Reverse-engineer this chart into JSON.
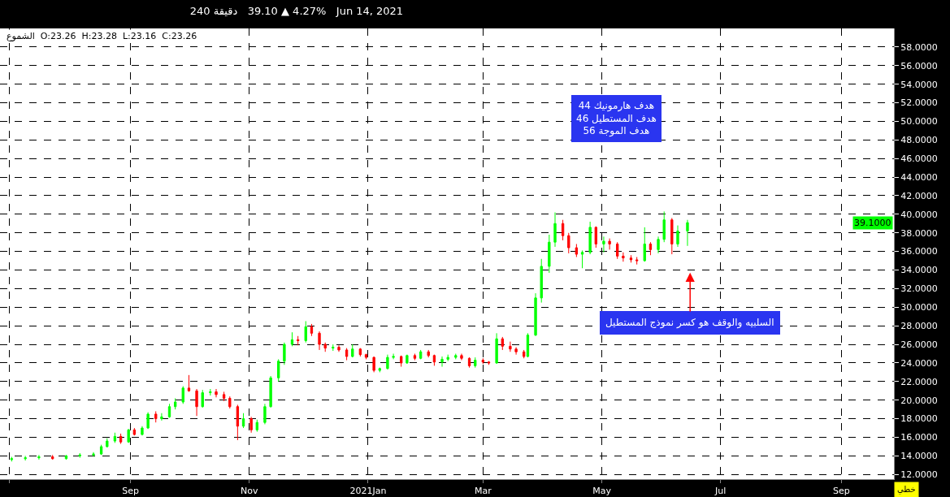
{
  "chart_data": {
    "type": "candlestick",
    "title": "240 دقيقة   39.10 ▲ 4.27%   Jun 14, 2021",
    "subtitle": "الشموع  O:23.26  H:23.28  L:23.16  C:23.26",
    "x": [
      "2020-07-02",
      "2020-07-09",
      "2020-07-16",
      "2020-07-23",
      "2020-07-30",
      "2020-08-06",
      "2020-08-13",
      "2020-08-17",
      "2020-08-20",
      "2020-08-24",
      "2020-08-27",
      "2020-08-31",
      "2020-09-03",
      "2020-09-07",
      "2020-09-10",
      "2020-09-14",
      "2020-09-17",
      "2020-09-21",
      "2020-09-24",
      "2020-09-28",
      "2020-10-01",
      "2020-10-05",
      "2020-10-08",
      "2020-10-12",
      "2020-10-15",
      "2020-10-19",
      "2020-10-22",
      "2020-10-26",
      "2020-10-29",
      "2020-11-02",
      "2020-11-05",
      "2020-11-09",
      "2020-11-12",
      "2020-11-16",
      "2020-11-19",
      "2020-11-23",
      "2020-11-26",
      "2020-11-30",
      "2020-12-03",
      "2020-12-07",
      "2020-12-10",
      "2020-12-14",
      "2020-12-17",
      "2020-12-21",
      "2020-12-24",
      "2020-12-28",
      "2020-12-31",
      "2021-01-04",
      "2021-01-07",
      "2021-01-11",
      "2021-01-14",
      "2021-01-18",
      "2021-01-21",
      "2021-01-25",
      "2021-01-28",
      "2021-02-01",
      "2021-02-04",
      "2021-02-08",
      "2021-02-11",
      "2021-02-15",
      "2021-02-18",
      "2021-02-22",
      "2021-02-25",
      "2021-03-01",
      "2021-03-04",
      "2021-03-08",
      "2021-03-11",
      "2021-03-15",
      "2021-03-18",
      "2021-03-22",
      "2021-03-24",
      "2021-03-28",
      "2021-03-31",
      "2021-04-04",
      "2021-04-07",
      "2021-04-11",
      "2021-04-14",
      "2021-04-18",
      "2021-04-21",
      "2021-04-25",
      "2021-04-28",
      "2021-05-02",
      "2021-05-05",
      "2021-05-09",
      "2021-05-12",
      "2021-05-16",
      "2021-05-19",
      "2021-05-23",
      "2021-05-26",
      "2021-05-30",
      "2021-06-02",
      "2021-06-06",
      "2021-06-09",
      "2021-06-14"
    ],
    "ohlc": [
      [
        13.6,
        13.9,
        13.4,
        13.7
      ],
      [
        13.7,
        14.0,
        13.5,
        13.8
      ],
      [
        13.8,
        14.1,
        13.6,
        13.9
      ],
      [
        13.9,
        14.1,
        13.6,
        13.7
      ],
      [
        13.7,
        14.1,
        13.6,
        14.0
      ],
      [
        14.0,
        14.3,
        13.8,
        14.1
      ],
      [
        14.1,
        14.4,
        13.9,
        14.2
      ],
      [
        14.2,
        15.2,
        14.1,
        15.0
      ],
      [
        15.0,
        15.9,
        14.9,
        15.6
      ],
      [
        15.6,
        16.5,
        15.4,
        16.1
      ],
      [
        16.1,
        16.4,
        15.3,
        15.5
      ],
      [
        15.5,
        16.9,
        15.4,
        16.8
      ],
      [
        16.8,
        17.0,
        16.2,
        16.3
      ],
      [
        16.3,
        17.2,
        16.2,
        17.0
      ],
      [
        17.0,
        18.7,
        16.9,
        18.5
      ],
      [
        18.5,
        18.8,
        17.6,
        18.0
      ],
      [
        18.0,
        18.6,
        17.8,
        18.2
      ],
      [
        18.2,
        19.6,
        18.1,
        19.3
      ],
      [
        19.3,
        20.2,
        19.0,
        19.8
      ],
      [
        19.8,
        21.5,
        19.6,
        21.3
      ],
      [
        21.3,
        22.7,
        20.9,
        21.0
      ],
      [
        21.0,
        21.2,
        18.3,
        19.3
      ],
      [
        19.3,
        21.1,
        19.2,
        20.8
      ],
      [
        20.8,
        21.2,
        20.5,
        20.9
      ],
      [
        20.9,
        21.2,
        20.3,
        20.6
      ],
      [
        20.6,
        20.9,
        19.9,
        20.2
      ],
      [
        20.2,
        20.4,
        19.1,
        19.3
      ],
      [
        19.3,
        19.5,
        15.7,
        17.2
      ],
      [
        17.2,
        18.6,
        17.0,
        18.0
      ],
      [
        18.0,
        18.2,
        16.5,
        16.8
      ],
      [
        16.8,
        17.9,
        16.6,
        17.6
      ],
      [
        17.6,
        19.6,
        17.4,
        19.3
      ],
      [
        19.3,
        22.6,
        19.2,
        22.4
      ],
      [
        22.4,
        24.4,
        22.0,
        24.2
      ],
      [
        24.2,
        26.2,
        23.8,
        26.0
      ],
      [
        26.0,
        27.3,
        25.8,
        26.5
      ],
      [
        26.5,
        26.9,
        25.9,
        26.4
      ],
      [
        26.4,
        28.5,
        26.2,
        27.9
      ],
      [
        27.9,
        28.2,
        26.9,
        27.2
      ],
      [
        27.2,
        27.4,
        25.4,
        26.0
      ],
      [
        26.0,
        26.2,
        25.2,
        25.6
      ],
      [
        25.6,
        26.0,
        25.3,
        25.7
      ],
      [
        25.7,
        25.9,
        25.2,
        25.4
      ],
      [
        25.4,
        25.6,
        24.3,
        24.7
      ],
      [
        24.7,
        26.0,
        24.6,
        25.5
      ],
      [
        25.5,
        25.6,
        24.7,
        24.9
      ],
      [
        24.9,
        25.0,
        24.4,
        24.6
      ],
      [
        24.6,
        24.7,
        23.0,
        23.2
      ],
      [
        23.2,
        23.5,
        23.0,
        23.4
      ],
      [
        23.4,
        24.9,
        23.3,
        24.6
      ],
      [
        24.6,
        25.0,
        24.4,
        24.7
      ],
      [
        24.7,
        24.8,
        23.6,
        24.0
      ],
      [
        24.0,
        24.9,
        23.9,
        24.8
      ],
      [
        24.8,
        25.0,
        24.3,
        24.5
      ],
      [
        24.5,
        25.4,
        24.4,
        25.2
      ],
      [
        25.2,
        25.4,
        24.6,
        24.8
      ],
      [
        24.8,
        24.9,
        23.7,
        24.1
      ],
      [
        24.1,
        24.7,
        23.6,
        24.4
      ],
      [
        24.4,
        24.9,
        24.2,
        24.6
      ],
      [
        24.6,
        25.0,
        24.4,
        24.8
      ],
      [
        24.8,
        25.0,
        24.3,
        24.5
      ],
      [
        24.5,
        24.6,
        23.5,
        23.7
      ],
      [
        23.7,
        24.6,
        23.5,
        24.3
      ],
      [
        24.3,
        24.5,
        23.9,
        24.1
      ],
      [
        24.1,
        24.2,
        23.8,
        24.0
      ],
      [
        24.0,
        27.2,
        23.9,
        26.6
      ],
      [
        26.6,
        26.8,
        25.4,
        25.8
      ],
      [
        25.8,
        26.3,
        25.2,
        25.5
      ],
      [
        25.5,
        25.7,
        24.9,
        25.2
      ],
      [
        25.2,
        25.4,
        24.5,
        24.7
      ],
      [
        24.7,
        27.2,
        24.6,
        27.0
      ],
      [
        27.0,
        31.5,
        26.9,
        31.0
      ],
      [
        31.0,
        35.2,
        30.5,
        34.4
      ],
      [
        34.4,
        37.8,
        33.7,
        37.0
      ],
      [
        37.0,
        40.2,
        36.5,
        39.0
      ],
      [
        39.0,
        39.4,
        37.2,
        37.7
      ],
      [
        37.7,
        38.0,
        35.8,
        36.4
      ],
      [
        36.4,
        36.8,
        35.4,
        35.7
      ],
      [
        35.7,
        36.1,
        34.2,
        35.9
      ],
      [
        35.9,
        39.2,
        35.7,
        38.6
      ],
      [
        38.6,
        38.7,
        36.4,
        36.8
      ],
      [
        36.8,
        37.6,
        35.9,
        37.1
      ],
      [
        37.1,
        37.4,
        36.2,
        36.8
      ],
      [
        36.8,
        37.0,
        35.2,
        35.5
      ],
      [
        35.5,
        35.9,
        34.9,
        35.3
      ],
      [
        35.3,
        35.6,
        34.8,
        35.1
      ],
      [
        35.1,
        35.4,
        34.6,
        35.0
      ],
      [
        35.0,
        38.6,
        34.9,
        36.8
      ],
      [
        36.8,
        37.0,
        35.6,
        36.2
      ],
      [
        36.2,
        37.6,
        35.8,
        37.3
      ],
      [
        37.3,
        40.3,
        37.0,
        39.4
      ],
      [
        39.4,
        39.6,
        35.7,
        36.8
      ],
      [
        36.8,
        38.8,
        36.5,
        38.2
      ],
      [
        38.2,
        39.4,
        36.6,
        39.1
      ]
    ],
    "xlim": [
      "2020-06-26",
      "2021-09-28"
    ],
    "xticks": [
      {
        "value": "2020-07-01",
        "label": null
      },
      {
        "value": "2020-09-01",
        "label": "Sep"
      },
      {
        "value": "2020-11-01",
        "label": "Nov"
      },
      {
        "value": "2021-01-01",
        "label": "2021Jan"
      },
      {
        "value": "2021-03-01",
        "label": "Mar"
      },
      {
        "value": "2021-05-01",
        "label": "May"
      },
      {
        "value": "2021-07-01",
        "label": "Jul"
      },
      {
        "value": "2021-09-01",
        "label": "Sep"
      }
    ],
    "ylim": [
      11.5,
      60
    ],
    "yticks": [
      {
        "value": 12,
        "label": "12.0000"
      },
      {
        "value": 14,
        "label": "14.0000"
      },
      {
        "value": 16,
        "label": "16.0000"
      },
      {
        "value": 18,
        "label": "18.0000"
      },
      {
        "value": 20,
        "label": "20.0000"
      },
      {
        "value": 22,
        "label": "22.0000"
      },
      {
        "value": 24,
        "label": "24.0000"
      },
      {
        "value": 26,
        "label": "26.0000"
      },
      {
        "value": 28,
        "label": "28.0000"
      },
      {
        "value": 30,
        "label": "30.0000"
      },
      {
        "value": 32,
        "label": "32.0000"
      },
      {
        "value": 34,
        "label": "34.0000"
      },
      {
        "value": 36,
        "label": "36.0000"
      },
      {
        "value": 38,
        "label": "38.0000"
      },
      {
        "value": 40,
        "label": "40.0000"
      },
      {
        "value": 42,
        "label": "42.0000"
      },
      {
        "value": 44,
        "label": "44.0000"
      },
      {
        "value": 46,
        "label": "46.0000"
      },
      {
        "value": 48,
        "label": "48.0000"
      },
      {
        "value": 50,
        "label": "50.0000"
      },
      {
        "value": 52,
        "label": "52.0000"
      },
      {
        "value": 54,
        "label": "54.0000"
      },
      {
        "value": 56,
        "label": "56.0000"
      },
      {
        "value": 58,
        "label": "58.0000"
      }
    ],
    "grid": true,
    "annotations": [
      "44 هدف هارمونيك\n46 هدف المستطيل\n56 هدف الموجة",
      "السلبيه والوقف هو كسر نموذج المستطيل",
      "39.1000",
      "خطي"
    ]
  }
}
